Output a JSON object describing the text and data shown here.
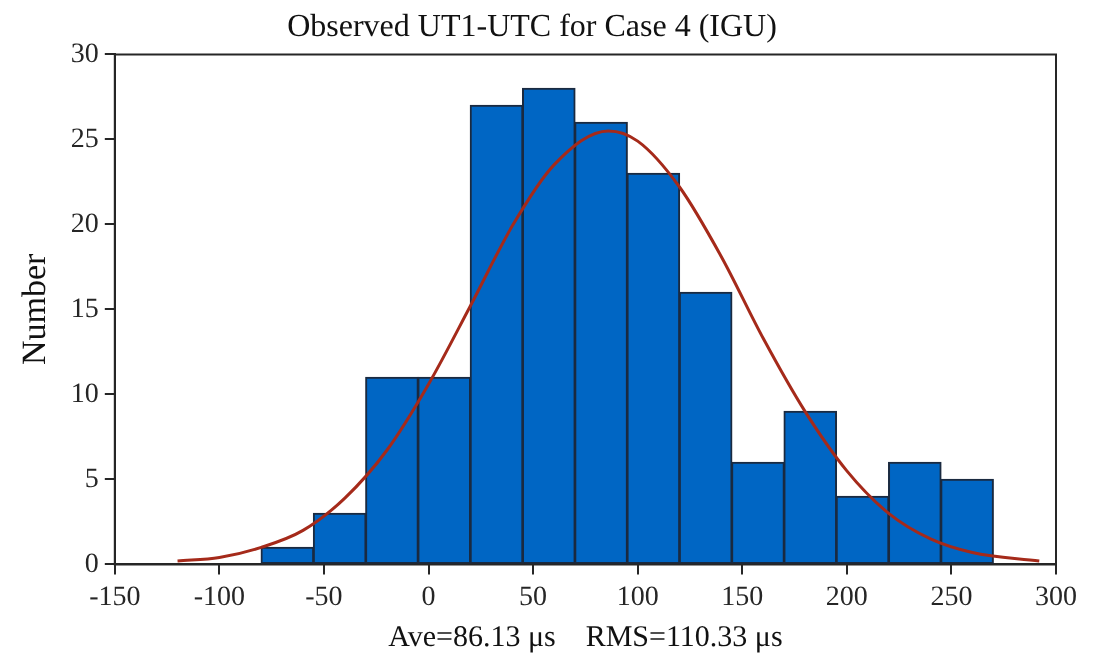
{
  "chart_data": {
    "type": "histogram",
    "title": "Observed UT1-UTC for Case 4 (IGU)",
    "xlabel": "Ave=86.13 μs    RMS=110.33 μs",
    "ylabel": "Number",
    "bins": [
      -80,
      -55,
      -30,
      -5,
      20,
      45,
      70,
      95,
      120,
      145,
      170,
      195,
      220,
      245,
      270
    ],
    "values": [
      1,
      3,
      11,
      11,
      27,
      28,
      26,
      23,
      16,
      6,
      9,
      4,
      6,
      5
    ],
    "color": "#0066c4",
    "series": [
      {
        "type": "line",
        "color": "#a52a1a",
        "x": [
          -120,
          -100,
          -80,
          -60,
          -40,
          -20,
          0,
          20,
          40,
          60,
          86,
          100,
          120,
          140,
          160,
          180,
          200,
          220,
          240,
          260,
          292
        ],
        "values": [
          0.2,
          0.4,
          1.0,
          2.0,
          3.9,
          6.7,
          10.6,
          15.2,
          19.9,
          23.5,
          25.5,
          24.9,
          22.2,
          18.1,
          13.3,
          9.0,
          5.5,
          3.0,
          1.5,
          0.7,
          0.2
        ]
      }
    ],
    "marker": "none",
    "line_style": "solid",
    "xlim": [
      -150,
      300
    ],
    "xticks": [
      -150,
      -100,
      -50,
      0,
      50,
      100,
      150,
      200,
      250,
      300
    ],
    "ylim": [
      0,
      30
    ],
    "yticks": [
      0,
      5,
      10,
      15,
      20,
      25,
      30
    ],
    "grid": false,
    "legend": false
  }
}
